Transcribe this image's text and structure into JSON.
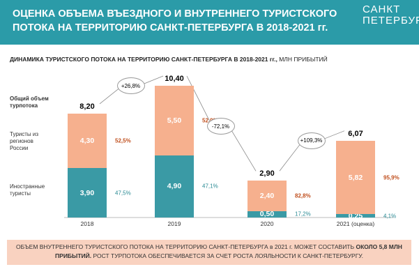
{
  "header": {
    "title": "ОЦЕНКА ОБЪЕМА ВЪЕЗДНОГО И ВНУТРЕННЕГО ТУРИСТСКОГО ПОТОКА НА ТЕРРИТОРИЮ САНКТ-ПЕТЕРБУРГА В 2018-2021 гг.",
    "logo": "САНКТ ПЕТЕРБУРГ"
  },
  "chart_data": {
    "type": "stacked-bar",
    "title": "ДИНАМИКА ТУРИСТСКОГО ПОТОКА НА ТЕРРИТОРИЮ САНКТ-ПЕТЕРБУРГА В 2018-2021 гг.,",
    "units": "МЛН ПРИБЫТИЙ",
    "categories": [
      "2018",
      "2019",
      "2020",
      "2021 (оценка)"
    ],
    "series": [
      {
        "name": "Иностранные туристы",
        "color": "#3a9aa5",
        "values": [
          3.9,
          4.9,
          0.5,
          0.25
        ],
        "value_labels": [
          "3,90",
          "4,90",
          "0,50",
          "0,25"
        ],
        "shares": [
          47.5,
          47.1,
          17.2,
          4.1
        ],
        "share_labels": [
          "47,5%",
          "47,1%",
          "17,2%",
          "4,1%"
        ],
        "share_color": "#2a8a94"
      },
      {
        "name": "Туристы из регионов России",
        "color": "#f6b08e",
        "values": [
          4.3,
          5.5,
          2.4,
          5.82
        ],
        "value_labels": [
          "4,30",
          "5,50",
          "2,40",
          "5,82"
        ],
        "shares": [
          52.5,
          52.9,
          82.8,
          95.9
        ],
        "share_labels": [
          "52,5%",
          "52,9%",
          "82,8%",
          "95,9%"
        ],
        "share_color": "#c0501f"
      }
    ],
    "totals": {
      "name": "Общий объем турпотока",
      "values": [
        8.2,
        10.4,
        2.9,
        6.07
      ],
      "value_labels": [
        "8,20",
        "10,40",
        "2,90",
        "6,07"
      ]
    },
    "growth": {
      "values": [
        26.8,
        -72.1,
        109.3
      ],
      "value_labels": [
        "+26,8%",
        "-72,1%",
        "+109,3%"
      ]
    }
  },
  "footer": {
    "text_1": "ОБЪЕМ ВНУТРЕННЕГО ТУРИСТСКОГО ПОТОКА НА ТЕРРИТОРИЮ САНКТ-ПЕТЕРБУРГА в 2021 г. МОЖЕТ СОСТАВИТЬ",
    "bold": "ОКОЛО 5,8 МЛН ПРИБЫТИЙ.",
    "text_2": "РОСТ ТУРПОТОКА ОБЕСПЕЧИВАЕТСЯ ЗА СЧЕТ РОСТА ЛОЯЛЬНОСТИ К САНКТ-ПЕТЕРБУРГУ."
  }
}
